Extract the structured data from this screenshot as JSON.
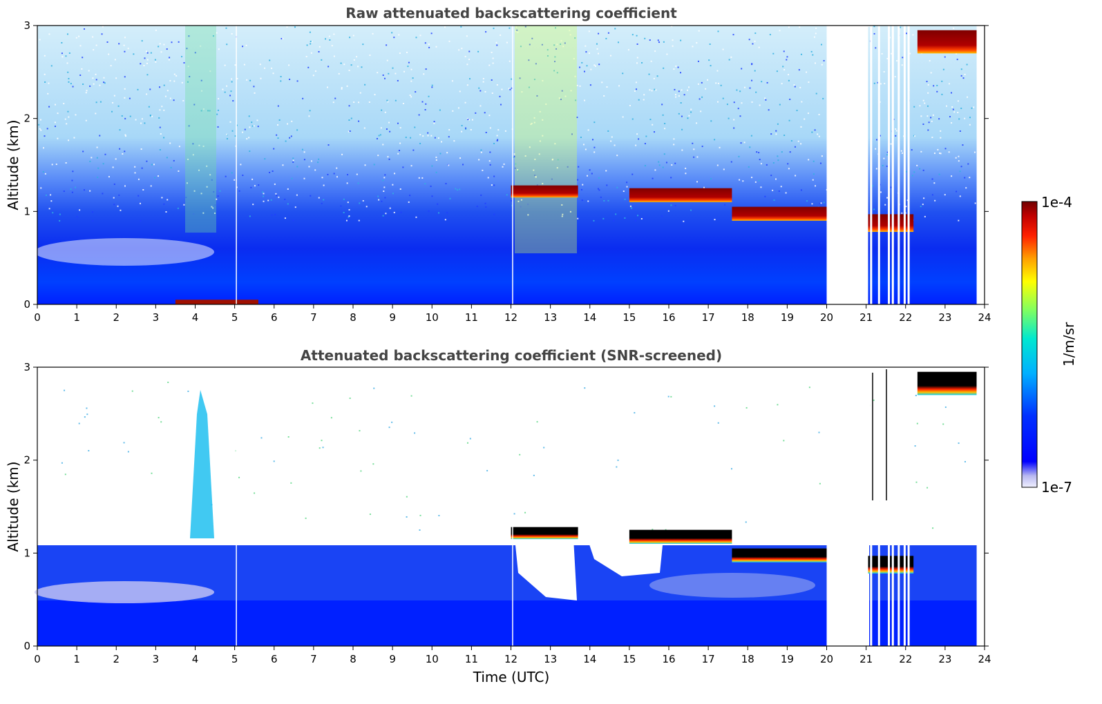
{
  "figure": {
    "colors": {
      "background": "#ffffff",
      "title": "#444444",
      "frame": "#000000"
    },
    "colormap": [
      "#ffffff",
      "#c8c8f0",
      "#0000ff",
      "#0090ff",
      "#00e0e0",
      "#80ff60",
      "#ffff00",
      "#ff9000",
      "#ff2000",
      "#b00000",
      "#700000"
    ]
  },
  "chart_data": [
    {
      "type": "heatmap",
      "title": "Raw attenuated backscattering coefficient",
      "xlabel": "",
      "ylabel": "Altitude (km)",
      "xlim": [
        0,
        24
      ],
      "ylim": [
        0,
        3
      ],
      "xticks": [
        "0",
        "1",
        "2",
        "3",
        "4",
        "5",
        "6",
        "7",
        "8",
        "9",
        "10",
        "11",
        "12",
        "13",
        "14",
        "15",
        "16",
        "17",
        "18",
        "19",
        "20",
        "21",
        "22",
        "23",
        "24"
      ],
      "yticks": [
        "0",
        "1",
        "2",
        "3"
      ],
      "data_gaps_utc": [
        [
          20.0,
          21.05
        ],
        [
          23.8,
          24.0
        ]
      ],
      "features": [
        {
          "name": "cloud layer",
          "start_utc": 12.0,
          "end_utc": 13.7,
          "altitude_km": [
            1.15,
            1.28
          ]
        },
        {
          "name": "cloud layer",
          "start_utc": 15.0,
          "end_utc": 17.6,
          "altitude_km": [
            1.1,
            1.25
          ]
        },
        {
          "name": "cloud layer",
          "start_utc": 17.6,
          "end_utc": 20.0,
          "altitude_km": [
            0.9,
            1.05
          ]
        },
        {
          "name": "cloud layer",
          "start_utc": 21.0,
          "end_utc": 22.2,
          "altitude_km": [
            0.78,
            0.97
          ]
        },
        {
          "name": "cloud layer",
          "start_utc": 22.3,
          "end_utc": 23.8,
          "altitude_km": [
            2.7,
            2.95
          ]
        },
        {
          "name": "near-ground layer",
          "start_utc": 3.5,
          "end_utc": 5.6,
          "altitude_km": [
            0.0,
            0.05
          ]
        }
      ]
    },
    {
      "type": "heatmap",
      "title": "Attenuated backscattering coefficient (SNR-screened)",
      "xlabel": "Time (UTC)",
      "ylabel": "Altitude (km)",
      "xlim": [
        0,
        24
      ],
      "ylim": [
        0,
        3
      ],
      "xticks": [
        "0",
        "1",
        "2",
        "3",
        "4",
        "5",
        "6",
        "7",
        "8",
        "9",
        "10",
        "11",
        "12",
        "13",
        "14",
        "15",
        "16",
        "17",
        "18",
        "19",
        "20",
        "21",
        "22",
        "23",
        "24"
      ],
      "yticks": [
        "0",
        "1",
        "2",
        "3"
      ],
      "data_gaps_utc": [
        [
          20.0,
          21.05
        ],
        [
          23.8,
          24.0
        ]
      ],
      "features": [
        {
          "name": "boundary layer top",
          "start_utc": 0,
          "end_utc": 11.5,
          "altitude_km": [
            1.1,
            1.2
          ]
        },
        {
          "name": "aerosol plume",
          "start_utc": 3.8,
          "end_utc": 4.4,
          "altitude_km": [
            1.0,
            2.9
          ]
        },
        {
          "name": "cloud layer",
          "start_utc": 12.0,
          "end_utc": 13.7,
          "altitude_km": [
            1.15,
            1.28
          ]
        },
        {
          "name": "cloud layer",
          "start_utc": 15.0,
          "end_utc": 17.6,
          "altitude_km": [
            1.1,
            1.25
          ]
        },
        {
          "name": "cloud layer",
          "start_utc": 17.6,
          "end_utc": 20.0,
          "altitude_km": [
            0.9,
            1.05
          ]
        },
        {
          "name": "cloud layer",
          "start_utc": 21.0,
          "end_utc": 22.2,
          "altitude_km": [
            0.78,
            0.97
          ]
        },
        {
          "name": "cloud layer",
          "start_utc": 22.3,
          "end_utc": 23.8,
          "altitude_km": [
            2.7,
            2.95
          ]
        }
      ]
    }
  ],
  "colorbar": {
    "label": "1/m/sr",
    "max_label": "1e-4",
    "min_label": "1e-7",
    "scale": "log"
  }
}
